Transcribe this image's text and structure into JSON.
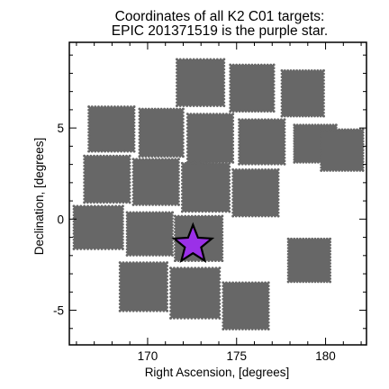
{
  "chart_data": {
    "type": "scatter",
    "title_lines": [
      "Coordinates of all K2 C01 targets:",
      "EPIC 201371519 is the purple star."
    ],
    "xlabel": "Right Ascension, [degrees]",
    "ylabel": "Declination, [degrees]",
    "xlim": [
      165.6,
      182.3
    ],
    "ylim": [
      -6.9,
      9.7
    ],
    "xticks": [
      170,
      175,
      180
    ],
    "yticks": [
      -5,
      0,
      5
    ],
    "x_minor_step": 1,
    "y_minor_step": 1,
    "grid": false,
    "colors": {
      "targets": "#676767",
      "star": "#9b30e8",
      "star_edge": "#000000"
    },
    "target_fields": [
      {
        "center": [
          172.97,
          7.49
        ],
        "size": [
          2.65,
          2.55
        ]
      },
      {
        "center": [
          175.87,
          7.19
        ],
        "size": [
          2.45,
          2.55
        ]
      },
      {
        "center": [
          178.72,
          6.9
        ],
        "size": [
          2.35,
          2.5
        ]
      },
      {
        "center": [
          167.97,
          4.94
        ],
        "size": [
          2.55,
          2.45
        ]
      },
      {
        "center": [
          170.77,
          4.74
        ],
        "size": [
          2.45,
          2.6
        ]
      },
      {
        "center": [
          173.52,
          4.44
        ],
        "size": [
          2.55,
          2.65
        ]
      },
      {
        "center": [
          176.42,
          4.24
        ],
        "size": [
          2.55,
          2.45
        ]
      },
      {
        "center": [
          179.42,
          4.14
        ],
        "size": [
          2.35,
          2.05
        ]
      },
      {
        "center": [
          180.93,
          3.79
        ],
        "size": [
          2.35,
          2.25
        ]
      },
      {
        "center": [
          167.72,
          2.19
        ],
        "size": [
          2.55,
          2.55
        ]
      },
      {
        "center": [
          170.47,
          2.04
        ],
        "size": [
          2.55,
          2.5
        ]
      },
      {
        "center": [
          173.27,
          1.74
        ],
        "size": [
          2.65,
          2.65
        ]
      },
      {
        "center": [
          176.07,
          1.44
        ],
        "size": [
          2.55,
          2.55
        ]
      },
      {
        "center": [
          167.23,
          -0.46
        ],
        "size": [
          2.75,
          2.35
        ]
      },
      {
        "center": [
          170.12,
          -0.81
        ],
        "size": [
          2.55,
          2.35
        ]
      },
      {
        "center": [
          172.87,
          -1.06
        ],
        "size": [
          2.65,
          2.45
        ]
      },
      {
        "center": [
          179.08,
          -2.26
        ],
        "size": [
          2.35,
          2.35
        ]
      },
      {
        "center": [
          169.77,
          -3.71
        ],
        "size": [
          2.65,
          2.65
        ]
      },
      {
        "center": [
          172.67,
          -4.06
        ],
        "size": [
          2.75,
          2.75
        ]
      },
      {
        "center": [
          175.52,
          -4.76
        ],
        "size": [
          2.55,
          2.55
        ]
      }
    ],
    "highlight": {
      "name": "EPIC 201371519",
      "ra": 172.55,
      "dec": -1.4,
      "marker": "star"
    }
  }
}
